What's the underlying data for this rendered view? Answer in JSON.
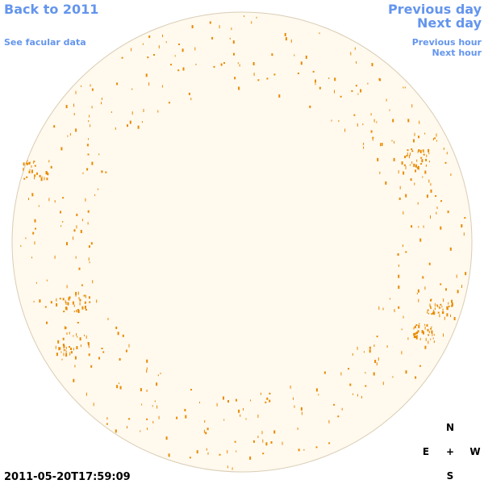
{
  "navigation": {
    "back_to_year": "Back to 2011",
    "facular_link": "See facular data",
    "previous_day": "Previous day",
    "next_day": "Next day",
    "previous_hour": "Previous hour",
    "next_hour": "Next hour"
  },
  "timestamp": "2011-05-20T17:59:09",
  "compass": {
    "north": "N",
    "east": "E",
    "center": "+",
    "west": "W",
    "south": "S"
  }
}
